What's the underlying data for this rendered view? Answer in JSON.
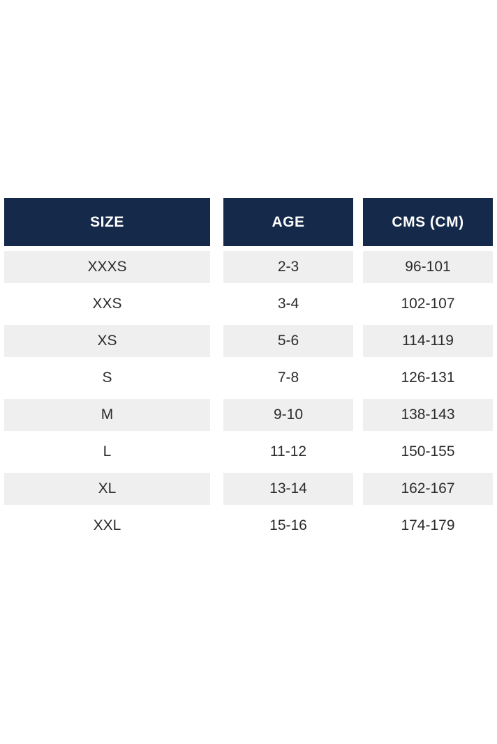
{
  "theme": {
    "page_bg": "#FFFFFF",
    "header_bg": "#15294A",
    "header_text": "#FFFFFF",
    "row_bg": "#FFFFFF",
    "row_alt_bg": "#EFEFEF",
    "cell_text": "#2B2B2B"
  },
  "chart_data": {
    "type": "table",
    "title": "",
    "columns": [
      "SIZE",
      "AGE",
      "CMS (CM)"
    ],
    "rows": [
      [
        "XXXS",
        "2-3",
        "96-101"
      ],
      [
        "XXS",
        "3-4",
        "102-107"
      ],
      [
        "XS",
        "5-6",
        "114-119"
      ],
      [
        "S",
        "7-8",
        "126-131"
      ],
      [
        "M",
        "9-10",
        "138-143"
      ],
      [
        "L",
        "11-12",
        "150-155"
      ],
      [
        "XL",
        "13-14",
        "162-167"
      ],
      [
        "XXL",
        "15-16",
        "174-179"
      ]
    ],
    "layout": {
      "legend": "none",
      "grid": "off",
      "row_striping": "alternating, first data row shaded"
    }
  }
}
